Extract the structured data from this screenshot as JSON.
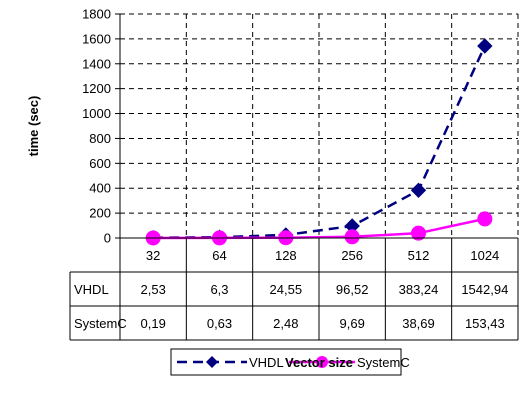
{
  "chart_data": {
    "type": "line",
    "title": "",
    "xlabel": "Vector size",
    "ylabel": "time (sec)",
    "categories": [
      "32",
      "64",
      "128",
      "256",
      "512",
      "1024"
    ],
    "ylim": [
      0,
      1800
    ],
    "yticks": [
      "0",
      "200",
      "400",
      "600",
      "800",
      "1000",
      "1200",
      "1400",
      "1600",
      "1800"
    ],
    "grid": true,
    "legend_position": "bottom",
    "series": [
      {
        "name": "VHDL",
        "values": [
          2.53,
          6.3,
          24.55,
          96.52,
          383.24,
          1542.94
        ],
        "labels": [
          "2,53",
          "6,3",
          "24,55",
          "96,52",
          "383,24",
          "1542,94"
        ],
        "color": "#000080",
        "line_style": "dashed",
        "marker": "diamond"
      },
      {
        "name": "SystemC",
        "values": [
          0.19,
          0.63,
          2.48,
          9.69,
          38.69,
          153.43
        ],
        "labels": [
          "0,19",
          "0,63",
          "2,48",
          "9,69",
          "38,69",
          "153,43"
        ],
        "color": "#ff00ff",
        "line_style": "solid",
        "marker": "circle"
      }
    ]
  }
}
